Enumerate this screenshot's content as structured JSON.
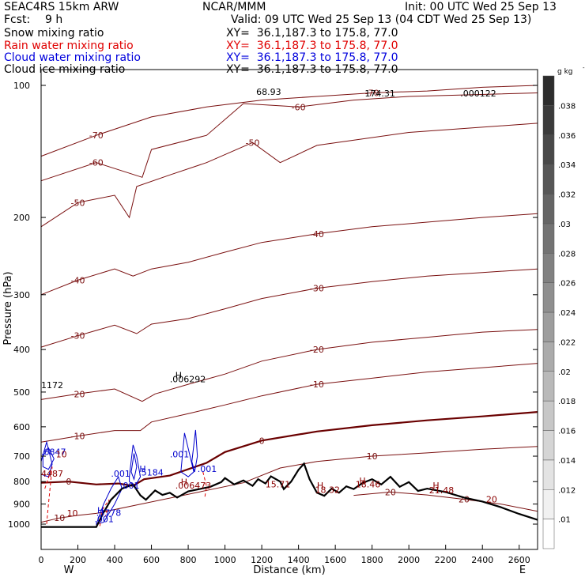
{
  "header": {
    "model": "SEAC4RS 15km ARW",
    "forecast_label": "Fcst:",
    "forecast_value": "9 h",
    "center": "NCAR/MMM",
    "init": "Init: 00 UTC Wed 25 Sep 13",
    "valid": "Valid: 09 UTC Wed 25 Sep 13 (04 CDT Wed 25 Sep 13)",
    "fields": [
      {
        "name": "Snow mixing ratio",
        "xy": "XY=  36.1,187.3 to 175.8, 77.0",
        "color": "#000000"
      },
      {
        "name": "Rain water mixing ratio",
        "xy": "XY=  36.1,187.3 to 175.8, 77.0",
        "color": "#e00000"
      },
      {
        "name": "Cloud water mixing ratio",
        "xy": "XY=  36.1,187.3 to 175.8, 77.0",
        "color": "#0000dd"
      },
      {
        "name": "Cloud ice mixing ratio",
        "xy": "XY=  36.1,187.3 to 175.8, 77.0",
        "color": "#000000"
      }
    ]
  },
  "colors": {
    "temperature": "#7a1010",
    "freezing": "#6a0000",
    "cloud_water": "#0000cc",
    "rain": "#e00000",
    "terrain": "#000000"
  },
  "chart_data": {
    "type": "contour",
    "xlabel": "Distance (km)",
    "ylabel": "Pressure (hPa)",
    "xlim": [
      0,
      2700
    ],
    "ylim": [
      1050,
      100
    ],
    "y_scale": "log",
    "x_ticks": [
      0,
      200,
      400,
      600,
      800,
      1000,
      1200,
      1400,
      1600,
      1800,
      2000,
      2200,
      2400,
      2600
    ],
    "y_ticks": [
      100,
      200,
      300,
      400,
      500,
      600,
      700,
      800,
      900,
      1000
    ],
    "x_end_labels": {
      "left": "W",
      "right": "E"
    },
    "colorbar": {
      "unit": "g kg",
      "unit_exponent": "-1",
      "ticks": [
        ".01",
        ".012",
        ".014",
        ".016",
        ".018",
        ".02",
        ".022",
        ".024",
        ".026",
        ".028",
        ".03",
        ".032",
        ".034",
        ".036",
        ".038"
      ]
    },
    "temperature_contours": [
      {
        "label": "-70",
        "points": [
          [
            0,
            145
          ],
          [
            300,
            130
          ],
          [
            600,
            118
          ],
          [
            900,
            112
          ],
          [
            1200,
            108
          ],
          [
            1500,
            106
          ],
          [
            1800,
            104
          ],
          [
            2100,
            103
          ],
          [
            2400,
            101
          ],
          [
            2700,
            100
          ]
        ]
      },
      {
        "label": "-60",
        "points": [
          [
            0,
            165
          ],
          [
            300,
            150
          ],
          [
            550,
            162
          ],
          [
            600,
            140
          ],
          [
            900,
            130
          ],
          [
            1100,
            110
          ],
          [
            1400,
            112
          ],
          [
            1700,
            108
          ],
          [
            2000,
            106
          ],
          [
            2700,
            104
          ]
        ]
      },
      {
        "label": "-50",
        "points": [
          [
            0,
            210
          ],
          [
            200,
            185
          ],
          [
            400,
            178
          ],
          [
            480,
            200
          ],
          [
            520,
            170
          ],
          [
            700,
            160
          ],
          [
            900,
            150
          ],
          [
            1150,
            135
          ],
          [
            1300,
            150
          ],
          [
            1500,
            137
          ],
          [
            2000,
            128
          ],
          [
            2700,
            122
          ]
        ]
      },
      {
        "label": "-40",
        "points": [
          [
            0,
            300
          ],
          [
            200,
            278
          ],
          [
            400,
            262
          ],
          [
            500,
            272
          ],
          [
            600,
            262
          ],
          [
            800,
            253
          ],
          [
            1000,
            240
          ],
          [
            1200,
            228
          ],
          [
            1500,
            218
          ],
          [
            1800,
            210
          ],
          [
            2100,
            205
          ],
          [
            2400,
            200
          ],
          [
            2700,
            196
          ]
        ]
      },
      {
        "label": "-30",
        "points": [
          [
            0,
            395
          ],
          [
            200,
            372
          ],
          [
            400,
            352
          ],
          [
            520,
            368
          ],
          [
            600,
            350
          ],
          [
            800,
            340
          ],
          [
            1000,
            323
          ],
          [
            1200,
            306
          ],
          [
            1500,
            290
          ],
          [
            1800,
            280
          ],
          [
            2100,
            272
          ],
          [
            2400,
            267
          ],
          [
            2700,
            262
          ]
        ]
      },
      {
        "label": "-20",
        "points": [
          [
            0,
            520
          ],
          [
            200,
            505
          ],
          [
            400,
            492
          ],
          [
            550,
            525
          ],
          [
            620,
            505
          ],
          [
            800,
            480
          ],
          [
            1000,
            455
          ],
          [
            1200,
            425
          ],
          [
            1500,
            400
          ],
          [
            1800,
            385
          ],
          [
            2100,
            375
          ],
          [
            2400,
            365
          ],
          [
            2700,
            360
          ]
        ]
      },
      {
        "label": "-10",
        "points": [
          [
            0,
            650
          ],
          [
            200,
            630
          ],
          [
            400,
            612
          ],
          [
            540,
            612
          ],
          [
            600,
            585
          ],
          [
            800,
            560
          ],
          [
            1000,
            535
          ],
          [
            1200,
            510
          ],
          [
            1500,
            480
          ],
          [
            1800,
            465
          ],
          [
            2100,
            450
          ],
          [
            2400,
            440
          ],
          [
            2700,
            430
          ]
        ]
      },
      {
        "label": "0",
        "points": [
          [
            0,
            805
          ],
          [
            150,
            800
          ],
          [
            300,
            812
          ],
          [
            420,
            808
          ],
          [
            500,
            818
          ],
          [
            560,
            790
          ],
          [
            700,
            775
          ],
          [
            900,
            725
          ],
          [
            1000,
            685
          ],
          [
            1200,
            645
          ],
          [
            1500,
            615
          ],
          [
            1800,
            595
          ],
          [
            2100,
            580
          ],
          [
            2400,
            568
          ],
          [
            2700,
            555
          ]
        ]
      },
      {
        "label": "10",
        "points": [
          [
            0,
            990
          ],
          [
            100,
            968
          ],
          [
            200,
            955
          ],
          [
            300,
            945
          ],
          [
            1100,
            805
          ],
          [
            1300,
            745
          ],
          [
            1500,
            720
          ],
          [
            1800,
            700
          ],
          [
            2100,
            688
          ],
          [
            2400,
            675
          ],
          [
            2700,
            665
          ]
        ]
      },
      {
        "label": "20",
        "points": [
          [
            1700,
            860
          ],
          [
            1900,
            845
          ],
          [
            2100,
            858
          ],
          [
            2300,
            878
          ],
          [
            2500,
            900
          ],
          [
            2700,
            935
          ]
        ]
      }
    ],
    "terrain_profile": [
      [
        0,
        1015
      ],
      [
        300,
        1015
      ],
      [
        340,
        940
      ],
      [
        380,
        880
      ],
      [
        440,
        830
      ],
      [
        500,
        812
      ],
      [
        540,
        860
      ],
      [
        570,
        880
      ],
      [
        620,
        838
      ],
      [
        660,
        858
      ],
      [
        700,
        848
      ],
      [
        740,
        870
      ],
      [
        800,
        842
      ],
      [
        860,
        832
      ],
      [
        920,
        822
      ],
      [
        980,
        802
      ],
      [
        1000,
        785
      ],
      [
        1050,
        812
      ],
      [
        1100,
        795
      ],
      [
        1150,
        818
      ],
      [
        1180,
        790
      ],
      [
        1220,
        808
      ],
      [
        1250,
        778
      ],
      [
        1300,
        800
      ],
      [
        1320,
        832
      ],
      [
        1360,
        800
      ],
      [
        1400,
        752
      ],
      [
        1430,
        728
      ],
      [
        1460,
        790
      ],
      [
        1500,
        848
      ],
      [
        1540,
        862
      ],
      [
        1580,
        830
      ],
      [
        1620,
        848
      ],
      [
        1660,
        820
      ],
      [
        1700,
        832
      ],
      [
        1750,
        805
      ],
      [
        1800,
        790
      ],
      [
        1850,
        812
      ],
      [
        1900,
        780
      ],
      [
        1950,
        822
      ],
      [
        2000,
        802
      ],
      [
        2050,
        840
      ],
      [
        2100,
        830
      ],
      [
        2200,
        845
      ],
      [
        2300,
        870
      ],
      [
        2400,
        888
      ],
      [
        2500,
        915
      ],
      [
        2600,
        948
      ],
      [
        2700,
        978
      ]
    ],
    "cloud_water_contours": [
      {
        "points": [
          [
            0,
            720
          ],
          [
            30,
            650
          ],
          [
            60,
            730
          ],
          [
            40,
            780
          ],
          [
            0,
            770
          ]
        ]
      },
      {
        "points": [
          [
            10,
            700
          ],
          [
            40,
            670
          ],
          [
            70,
            710
          ],
          [
            40,
            750
          ],
          [
            10,
            740
          ]
        ]
      },
      {
        "points": [
          [
            480,
            780
          ],
          [
            500,
            660
          ],
          [
            520,
            700
          ],
          [
            540,
            780
          ],
          [
            510,
            820
          ],
          [
            480,
            800
          ]
        ]
      },
      {
        "points": [
          [
            490,
            760
          ],
          [
            505,
            690
          ],
          [
            520,
            740
          ],
          [
            505,
            790
          ]
        ]
      },
      {
        "points": [
          [
            760,
            760
          ],
          [
            780,
            620
          ],
          [
            810,
            700
          ],
          [
            830,
            760
          ],
          [
            800,
            780
          ]
        ]
      },
      {
        "points": [
          [
            820,
            720
          ],
          [
            840,
            610
          ],
          [
            850,
            700
          ],
          [
            835,
            760
          ]
        ]
      },
      {
        "points": [
          [
            300,
            1000
          ],
          [
            340,
            900
          ],
          [
            380,
            830
          ],
          [
            420,
            780
          ],
          [
            440,
            830
          ],
          [
            400,
            900
          ],
          [
            340,
            990
          ]
        ]
      }
    ],
    "rain_contours": [
      {
        "points": [
          [
            20,
            830
          ],
          [
            60,
            740
          ],
          [
            40,
            900
          ],
          [
            30,
            1000
          ]
        ]
      },
      {
        "points": [
          [
            320,
            1010
          ],
          [
            330,
            930
          ],
          [
            370,
            880
          ],
          [
            350,
            960
          ]
        ]
      },
      {
        "points": [
          [
            880,
            760
          ],
          [
            900,
            820
          ],
          [
            890,
            870
          ]
        ]
      }
    ],
    "annotations": [
      {
        "text": "H",
        "x": 730,
        "y": 465,
        "color": "#000000"
      },
      {
        "text": ".006292",
        "x": 700,
        "y": 475,
        "color": "#000000"
      },
      {
        "text": "1172",
        "x": 0,
        "y": 490,
        "color": "#000000"
      },
      {
        "text": "68.93",
        "x": 1170,
        "y": 105,
        "color": "#000000"
      },
      {
        "text": "174.31",
        "x": 1760,
        "y": 106,
        "color": "#000000"
      },
      {
        "text": ".000122",
        "x": 2280,
        "y": 106,
        "color": "#000000"
      },
      {
        "text": "H",
        "x": 535,
        "y": 760,
        "color": "#0000cc"
      },
      {
        "text": ".5184",
        "x": 530,
        "y": 775,
        "color": "#0000cc"
      },
      {
        "text": ".001",
        "x": 700,
        "y": 705,
        "color": "#0000cc"
      },
      {
        "text": ".001",
        "x": 380,
        "y": 780,
        "color": "#0000cc"
      },
      {
        "text": ".001",
        "x": 430,
        "y": 830,
        "color": "#0000cc"
      },
      {
        "text": ".001",
        "x": 850,
        "y": 760,
        "color": "#0000cc"
      },
      {
        "text": "H",
        "x": 305,
        "y": 945,
        "color": "#0000cc"
      },
      {
        "text": ".3778",
        "x": 300,
        "y": 958,
        "color": "#0000cc"
      },
      {
        "text": ".001",
        "x": 290,
        "y": 990,
        "color": "#0000cc"
      },
      {
        "text": ".6847",
        "x": 0,
        "y": 695,
        "color": "#0000cc"
      },
      {
        "text": "H",
        "x": 760,
        "y": 815,
        "color": "#8b0000"
      },
      {
        "text": ".006473",
        "x": 730,
        "y": 830,
        "color": "#8b0000"
      },
      {
        "text": "4487",
        "x": 0,
        "y": 780,
        "color": "#8b0000"
      },
      {
        "text": "15.71",
        "x": 1220,
        "y": 825,
        "color": "#8b0000"
      },
      {
        "text": "H",
        "x": 1500,
        "y": 830,
        "color": "#8b0000"
      },
      {
        "text": "18.32",
        "x": 1490,
        "y": 848,
        "color": "#8b0000"
      },
      {
        "text": "H",
        "x": 1730,
        "y": 810,
        "color": "#8b0000"
      },
      {
        "text": "18.46",
        "x": 1710,
        "y": 825,
        "color": "#8b0000"
      },
      {
        "text": "H",
        "x": 2130,
        "y": 830,
        "color": "#8b0000"
      },
      {
        "text": "21.48",
        "x": 2110,
        "y": 850,
        "color": "#8b0000"
      },
      {
        "text": "10",
        "x": 80,
        "y": 705,
        "color": "#8b0000"
      },
      {
        "text": "10",
        "x": 140,
        "y": 960,
        "color": "#8b0000"
      },
      {
        "text": "20",
        "x": 2420,
        "y": 892,
        "color": "#8b0000"
      }
    ]
  }
}
